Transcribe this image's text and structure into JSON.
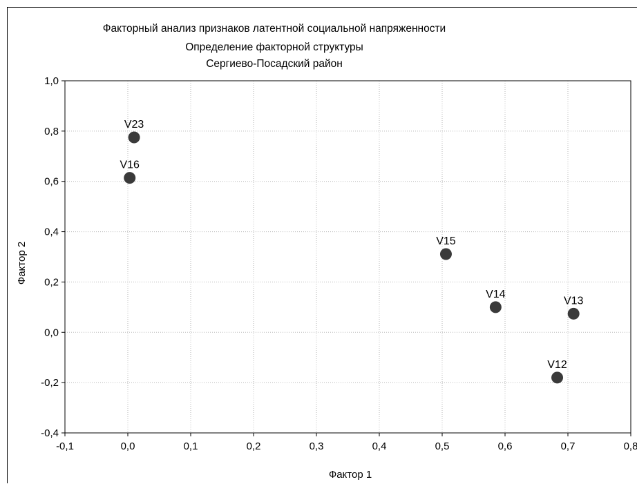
{
  "chart_data": {
    "type": "scatter",
    "title": [
      "Факторный анализ признаков латентной социальной напряженности",
      "Определение факторной структуры",
      "Сергиево-Посадский район"
    ],
    "xlabel": "Фактор 1",
    "ylabel": "Фактор 2",
    "xlim": [
      -0.1,
      0.8
    ],
    "ylim": [
      -0.4,
      1.0
    ],
    "xticks": [
      "-0,1",
      "0,0",
      "0,1",
      "0,2",
      "0,3",
      "0,4",
      "0,5",
      "0,6",
      "0,7",
      "0,8"
    ],
    "yticks": [
      "1,0",
      "0,8",
      "0,6",
      "0,4",
      "0,2",
      "0,0",
      "-0,2",
      "-0,4"
    ],
    "grid": true,
    "marker_color": "#3a3a3a",
    "points": [
      {
        "label": "V23",
        "x": 0.01,
        "y": 0.775
      },
      {
        "label": "V16",
        "x": 0.003,
        "y": 0.614
      },
      {
        "label": "V15",
        "x": 0.506,
        "y": 0.311
      },
      {
        "label": "V14",
        "x": 0.585,
        "y": 0.1
      },
      {
        "label": "V13",
        "x": 0.709,
        "y": 0.074
      },
      {
        "label": "V12",
        "x": 0.683,
        "y": -0.18
      }
    ]
  }
}
